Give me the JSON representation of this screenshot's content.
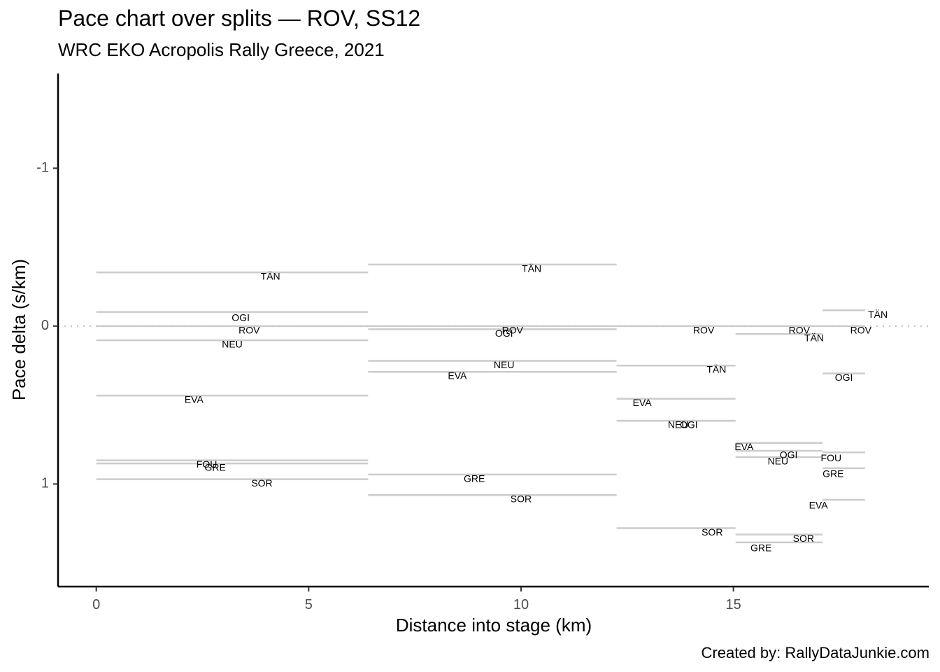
{
  "title": "Pace chart over splits — ROV, SS12",
  "subtitle": "WRC EKO Acropolis Rally Greece, 2021",
  "caption": "Created by: RallyDataJunkie.com",
  "chart_data": {
    "type": "line",
    "xlabel": "Distance into stage (km)",
    "ylabel": "Pace delta (s/km)",
    "xlim": [
      -0.9,
      19.6
    ],
    "ylim": [
      1.65,
      -1.6
    ],
    "y_reversed": true,
    "x_ticks": [
      0,
      5,
      10,
      15
    ],
    "y_ticks": [
      -1,
      0,
      1
    ],
    "x_tick_labels": [
      "0",
      "5",
      "10",
      "15"
    ],
    "y_tick_labels": [
      "-1",
      "0",
      "1"
    ],
    "reference_line": {
      "y": 0,
      "style": "dotted"
    },
    "grid": false,
    "splits": [
      0,
      6.4,
      12.25,
      15.05,
      17.1,
      18.1
    ],
    "segments": [
      {
        "label": "TÄN",
        "x0": 0,
        "x1": 6.4,
        "y": -0.34
      },
      {
        "label": "OGI",
        "x0": 0,
        "x1": 6.4,
        "y": -0.09
      },
      {
        "label": "ROV",
        "x0": 0,
        "x1": 6.4,
        "y": 0.0
      },
      {
        "label": "NEU",
        "x0": 0,
        "x1": 6.4,
        "y": 0.09
      },
      {
        "label": "EVA",
        "x0": 0,
        "x1": 6.4,
        "y": 0.44
      },
      {
        "label": "FOU",
        "x0": 0,
        "x1": 6.4,
        "y": 0.85
      },
      {
        "label": "GRE",
        "x0": 0,
        "x1": 6.4,
        "y": 0.87
      },
      {
        "label": "SOR",
        "x0": 0,
        "x1": 6.4,
        "y": 0.97
      },
      {
        "label": "TÄN",
        "x0": 6.4,
        "x1": 12.25,
        "y": -0.39
      },
      {
        "label": "ROV",
        "x0": 6.4,
        "x1": 12.25,
        "y": 0.0
      },
      {
        "label": "OGI",
        "x0": 6.4,
        "x1": 12.25,
        "y": 0.02
      },
      {
        "label": "NEU",
        "x0": 6.4,
        "x1": 12.25,
        "y": 0.22
      },
      {
        "label": "EVA",
        "x0": 6.4,
        "x1": 12.25,
        "y": 0.29
      },
      {
        "label": "GRE",
        "x0": 6.4,
        "x1": 12.25,
        "y": 0.94
      },
      {
        "label": "SOR",
        "x0": 6.4,
        "x1": 12.25,
        "y": 1.07
      },
      {
        "label": "ROV",
        "x0": 12.25,
        "x1": 15.05,
        "y": 0.0
      },
      {
        "label": "TÄN",
        "x0": 12.25,
        "x1": 15.05,
        "y": 0.25
      },
      {
        "label": "EVA",
        "x0": 12.25,
        "x1": 15.05,
        "y": 0.46
      },
      {
        "label": "NEU",
        "x0": 12.25,
        "x1": 15.05,
        "y": 0.6
      },
      {
        "label": "OGI",
        "x0": 12.25,
        "x1": 15.05,
        "y": 0.6
      },
      {
        "label": "SOR",
        "x0": 12.25,
        "x1": 15.05,
        "y": 1.28
      },
      {
        "label": "ROV",
        "x0": 15.05,
        "x1": 17.1,
        "y": 0.0
      },
      {
        "label": "EVA",
        "x0": 15.05,
        "x1": 17.1,
        "y": 0.74
      },
      {
        "label": "OGI",
        "x0": 15.05,
        "x1": 17.1,
        "y": 0.79
      },
      {
        "label": "NEU",
        "x0": 15.05,
        "x1": 17.1,
        "y": 0.83
      },
      {
        "label": "SOR",
        "x0": 15.05,
        "x1": 17.1,
        "y": 1.32
      },
      {
        "label": "GRE",
        "x0": 15.05,
        "x1": 17.1,
        "y": 1.37
      },
      {
        "label": "TÄN",
        "x0": 17.1,
        "x1": 18.1,
        "y": -0.1
      },
      {
        "label": "ROV",
        "x0": 17.1,
        "x1": 18.1,
        "y": 0.0
      },
      {
        "label": "TÄN",
        "x0": 15.05,
        "x1": 17.1,
        "y": 0.05
      },
      {
        "label": "OGI",
        "x0": 17.1,
        "x1": 18.1,
        "y": 0.3
      },
      {
        "label": "FOU",
        "x0": 17.1,
        "x1": 18.1,
        "y": 0.8
      },
      {
        "label": "GRE",
        "x0": 17.1,
        "x1": 18.1,
        "y": 0.9
      },
      {
        "label": "EVA",
        "x0": 17.1,
        "x1": 18.1,
        "y": 1.1
      }
    ],
    "labels": [
      {
        "text": "TÄN",
        "x": 4.1,
        "y": -0.31
      },
      {
        "text": "OGI",
        "x": 3.4,
        "y": -0.05
      },
      {
        "text": "ROV",
        "x": 3.6,
        "y": 0.03
      },
      {
        "text": "NEU",
        "x": 3.2,
        "y": 0.12
      },
      {
        "text": "EVA",
        "x": 2.3,
        "y": 0.47
      },
      {
        "text": "FOU",
        "x": 2.6,
        "y": 0.88
      },
      {
        "text": "GRE",
        "x": 2.8,
        "y": 0.9
      },
      {
        "text": "SOR",
        "x": 3.9,
        "y": 1.0
      },
      {
        "text": "TÄN",
        "x": 10.25,
        "y": -0.36
      },
      {
        "text": "ROV",
        "x": 9.8,
        "y": 0.03
      },
      {
        "text": "OGI",
        "x": 9.6,
        "y": 0.05
      },
      {
        "text": "NEU",
        "x": 9.6,
        "y": 0.25
      },
      {
        "text": "EVA",
        "x": 8.5,
        "y": 0.32
      },
      {
        "text": "GRE",
        "x": 8.9,
        "y": 0.97
      },
      {
        "text": "SOR",
        "x": 10.0,
        "y": 1.1
      },
      {
        "text": "ROV",
        "x": 14.3,
        "y": 0.03
      },
      {
        "text": "TÄN",
        "x": 14.6,
        "y": 0.28
      },
      {
        "text": "EVA",
        "x": 12.85,
        "y": 0.49
      },
      {
        "text": "NEU",
        "x": 13.7,
        "y": 0.63
      },
      {
        "text": "OGI",
        "x": 13.95,
        "y": 0.63
      },
      {
        "text": "SOR",
        "x": 14.5,
        "y": 1.31
      },
      {
        "text": "ROV",
        "x": 16.55,
        "y": 0.03
      },
      {
        "text": "TÄN",
        "x": 16.9,
        "y": 0.08
      },
      {
        "text": "EVA",
        "x": 15.25,
        "y": 0.77
      },
      {
        "text": "OGI",
        "x": 16.3,
        "y": 0.82
      },
      {
        "text": "NEU",
        "x": 16.05,
        "y": 0.86
      },
      {
        "text": "FOU",
        "x": 17.3,
        "y": 0.84
      },
      {
        "text": "GRE",
        "x": 17.35,
        "y": 0.94
      },
      {
        "text": "EVA",
        "x": 17.0,
        "y": 1.14
      },
      {
        "text": "SOR",
        "x": 16.65,
        "y": 1.35
      },
      {
        "text": "GRE",
        "x": 15.65,
        "y": 1.41
      },
      {
        "text": "TÄN",
        "x": 18.4,
        "y": -0.07
      },
      {
        "text": "ROV",
        "x": 18.0,
        "y": 0.03
      },
      {
        "text": "OGI",
        "x": 17.6,
        "y": 0.33
      }
    ]
  }
}
